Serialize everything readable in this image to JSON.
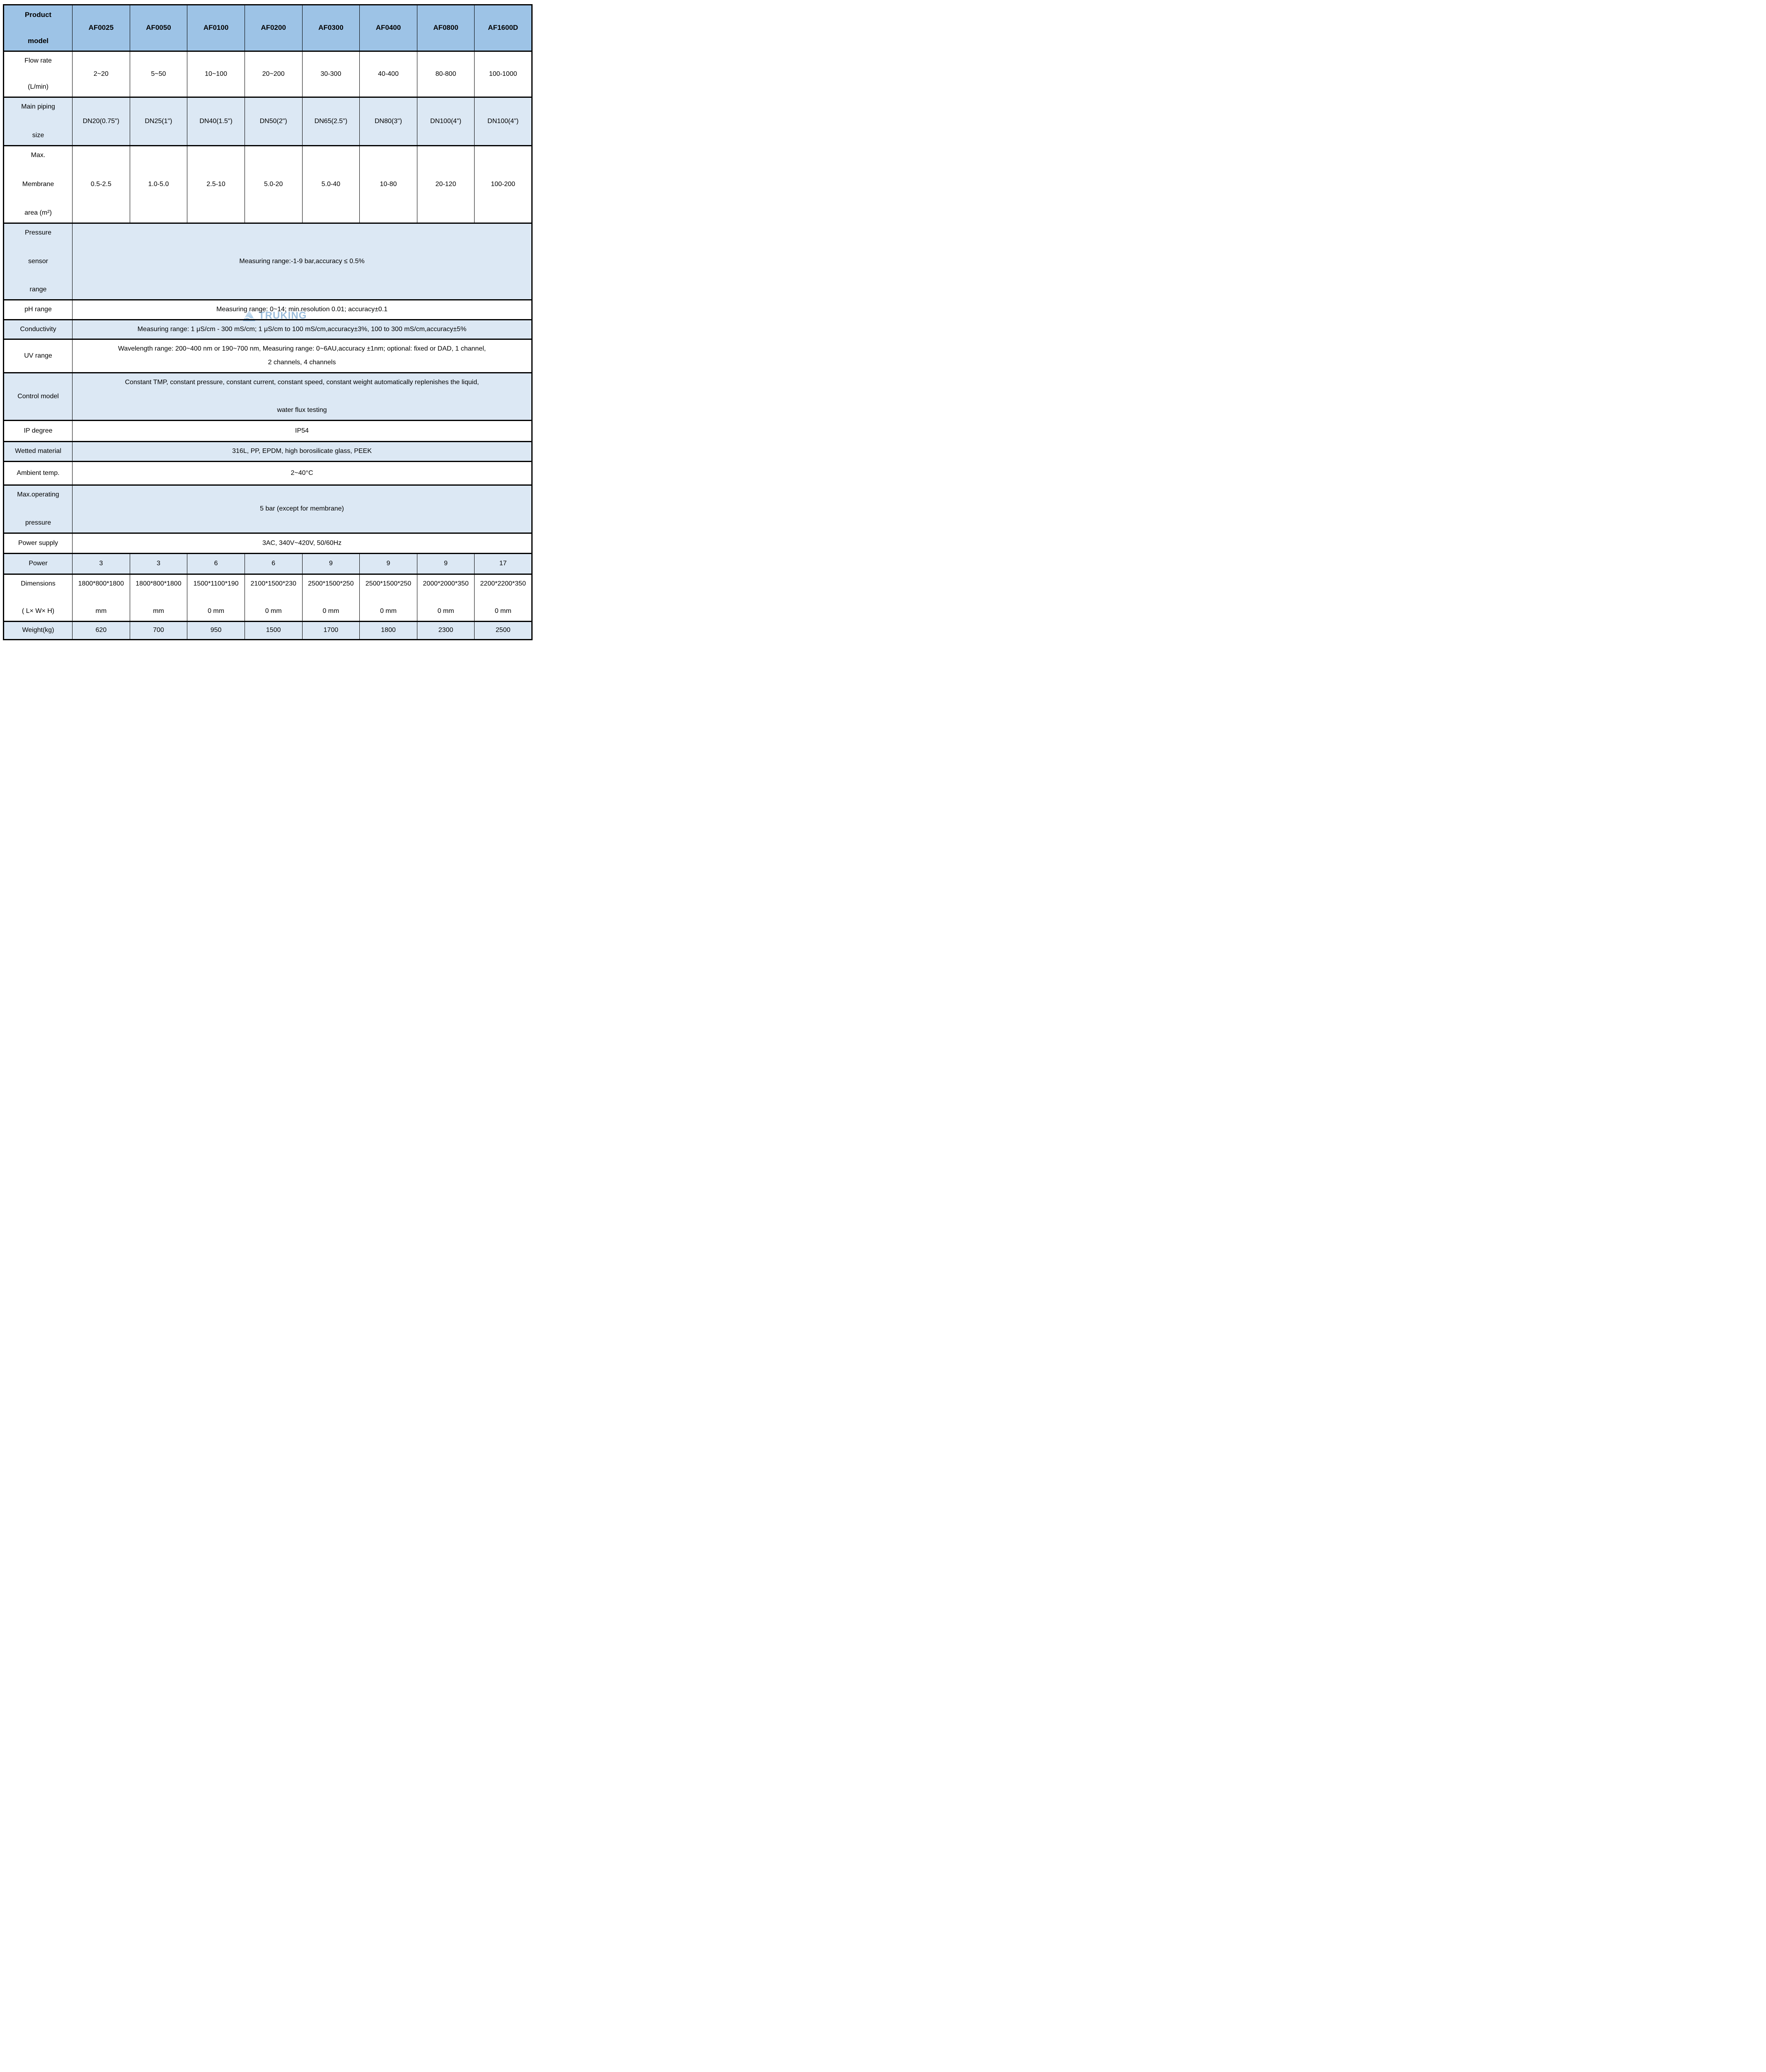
{
  "watermark": {
    "text": "TRUKING"
  },
  "colors": {
    "header_bg": "#9dc3e6",
    "blue_row_bg": "#dce8f4",
    "white_row_bg": "#ffffff",
    "border": "#000000",
    "watermark_color": "#85aed4"
  },
  "table": {
    "corner_label_lines": [
      "Product",
      "model"
    ],
    "columns": [
      "AF0025",
      "AF0050",
      "AF0100",
      "AF0200",
      "AF0300",
      "AF0400",
      "AF0800",
      "AF1600D"
    ],
    "rows": [
      {
        "id": "flow_rate",
        "label_lines": [
          "Flow rate",
          "(L/min)"
        ],
        "kind": "cells",
        "shade": "white",
        "values": [
          [
            "2~20"
          ],
          [
            "5~50"
          ],
          [
            "10~100"
          ],
          [
            "20~200"
          ],
          [
            "30-300"
          ],
          [
            "40-400"
          ],
          [
            "80-800"
          ],
          [
            "100-1000"
          ]
        ]
      },
      {
        "id": "main_piping_size",
        "label_lines": [
          "Main piping",
          "size"
        ],
        "kind": "cells",
        "shade": "blue",
        "values": [
          [
            "DN20(0.75\")"
          ],
          [
            "DN25(1\")"
          ],
          [
            "DN40(1.5\")"
          ],
          [
            "DN50(2\")"
          ],
          [
            "DN65(2.5\")"
          ],
          [
            "DN80(3\")"
          ],
          [
            "DN100(4\")"
          ],
          [
            "DN100(4\")"
          ]
        ]
      },
      {
        "id": "membrane_area",
        "label_lines": [
          "Max.",
          "Membrane",
          "area (m²)"
        ],
        "kind": "cells",
        "shade": "white",
        "values": [
          [
            "0.5-2.5"
          ],
          [
            "1.0-5.0"
          ],
          [
            "2.5-10"
          ],
          [
            "5.0-20"
          ],
          [
            "5.0-40"
          ],
          [
            "10-80"
          ],
          [
            "20-120"
          ],
          [
            "100-200"
          ]
        ]
      },
      {
        "id": "pressure_sensor_range",
        "label_lines": [
          "Pressure",
          "sensor",
          "range"
        ],
        "kind": "span",
        "shade": "blue",
        "content_lines": [
          "Measuring range:-1-9 bar,accuracy ≤ 0.5%"
        ]
      },
      {
        "id": "ph_range",
        "label_lines": [
          "pH range"
        ],
        "kind": "span",
        "shade": "white",
        "content_lines": [
          "Measuring range: 0~14;  min.resolution 0.01;  accuracy±0.1"
        ]
      },
      {
        "id": "conductivity",
        "label_lines": [
          "Conductivity"
        ],
        "kind": "span",
        "shade": "blue",
        "content_lines": [
          "Measuring range: 1 μS/cm - 300 mS/cm; 1 μS/cm to 100 mS/cm,accuracy±3%,  100 to 300 mS/cm,accuracy±5%"
        ]
      },
      {
        "id": "uv_range",
        "label_lines": [
          "UV range"
        ],
        "kind": "span",
        "shade": "white",
        "content_lines": [
          "Wavelength range: 200~400 nm or 190~700 nm, Measuring range: 0~6AU,accuracy ±1nm; optional: fixed or DAD, 1 channel,",
          "2 channels, 4 channels"
        ]
      },
      {
        "id": "control_model",
        "label_lines": [
          "Control model"
        ],
        "kind": "span",
        "shade": "blue",
        "content_lines": [
          "Constant TMP, constant pressure, constant current, constant speed, constant weight automatically replenishes the liquid,",
          "water flux testing"
        ]
      },
      {
        "id": "ip_degree",
        "label_lines": [
          "IP degree"
        ],
        "kind": "span",
        "shade": "white",
        "content_lines": [
          "IP54"
        ]
      },
      {
        "id": "wetted_material",
        "label_lines": [
          "Wetted material"
        ],
        "kind": "span",
        "shade": "blue",
        "content_lines": [
          "316L, PP, EPDM, high borosilicate glass, PEEK"
        ]
      },
      {
        "id": "ambient_temp",
        "label_lines": [
          "Ambient temp."
        ],
        "kind": "span",
        "shade": "white",
        "content_lines": [
          "2~40°C"
        ]
      },
      {
        "id": "max_operating_pressure",
        "label_lines": [
          "Max.operating",
          "pressure"
        ],
        "kind": "span",
        "shade": "blue",
        "content_lines": [
          "5 bar (except for membrane)"
        ]
      },
      {
        "id": "power_supply",
        "label_lines": [
          "Power supply"
        ],
        "kind": "span",
        "shade": "white",
        "content_lines": [
          "3AC,  340V~420V,  50/60Hz"
        ]
      },
      {
        "id": "power",
        "label_lines": [
          "Power"
        ],
        "kind": "cells",
        "shade": "blue",
        "values": [
          [
            "3"
          ],
          [
            "3"
          ],
          [
            "6"
          ],
          [
            "6"
          ],
          [
            "9"
          ],
          [
            "9"
          ],
          [
            "9"
          ],
          [
            "17"
          ]
        ]
      },
      {
        "id": "dimensions",
        "label_lines": [
          "Dimensions",
          "( L× W× H)"
        ],
        "kind": "cells",
        "shade": "white",
        "values": [
          [
            "1800*800*1800",
            "mm"
          ],
          [
            "1800*800*1800",
            "mm"
          ],
          [
            "1500*1100*190",
            "0 mm"
          ],
          [
            "2100*1500*230",
            "0 mm"
          ],
          [
            "2500*1500*250",
            "0 mm"
          ],
          [
            "2500*1500*250",
            "0 mm"
          ],
          [
            "2000*2000*350",
            "0 mm"
          ],
          [
            "2200*2200*350",
            "0 mm"
          ]
        ]
      },
      {
        "id": "weight",
        "label_lines": [
          "Weight(kg)"
        ],
        "kind": "cells",
        "shade": "blue",
        "values": [
          [
            "620"
          ],
          [
            "700"
          ],
          [
            "950"
          ],
          [
            "1500"
          ],
          [
            "1700"
          ],
          [
            "1800"
          ],
          [
            "2300"
          ],
          [
            "2500"
          ]
        ]
      }
    ]
  }
}
